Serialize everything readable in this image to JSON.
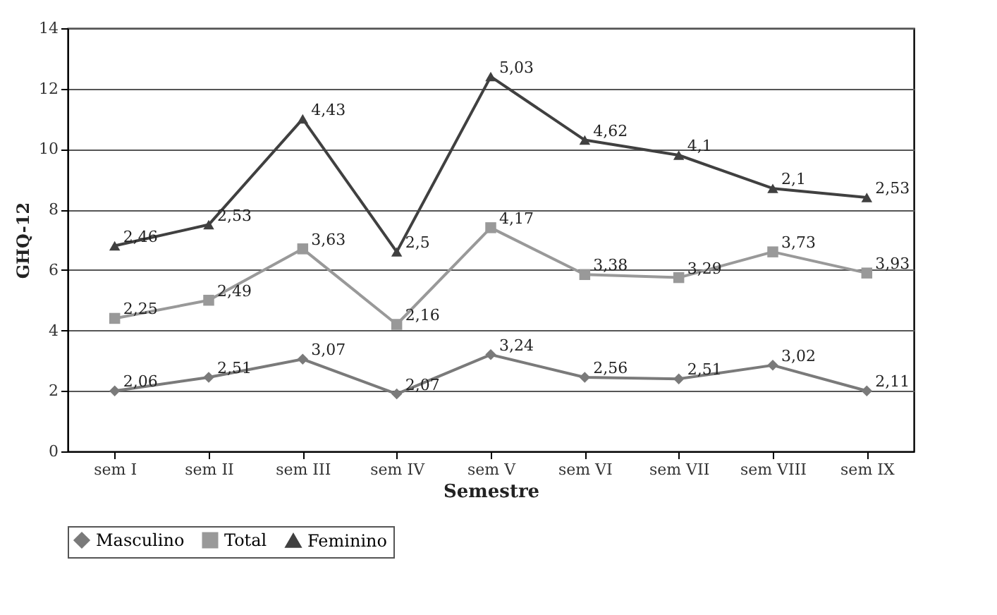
{
  "chart_data": {
    "type": "line",
    "xlabel": "Semestre",
    "ylabel": "GHQ-12",
    "categories": [
      "sem I",
      "sem II",
      "sem III",
      "sem IV",
      "sem V",
      "sem VI",
      "sem VII",
      "sem VIII",
      "sem IX"
    ],
    "ylim": [
      0,
      14
    ],
    "yticks": [
      0,
      2,
      4,
      6,
      8,
      10,
      12,
      14
    ],
    "grid": "y",
    "legend": "bottom",
    "series": [
      {
        "name": "Masculino",
        "color": "#7a7a7a",
        "marker": "diamond",
        "values": [
          2.0,
          2.45,
          3.05,
          1.9,
          3.2,
          2.45,
          2.4,
          2.85,
          2.0
        ]
      },
      {
        "name": "Total",
        "color": "#999999",
        "marker": "square",
        "values": [
          4.4,
          5.0,
          6.7,
          4.2,
          7.4,
          5.85,
          5.75,
          6.6,
          5.9
        ]
      },
      {
        "name": "Feminino",
        "color": "#404040",
        "marker": "triangle",
        "values": [
          6.8,
          7.5,
          11.0,
          6.6,
          12.4,
          10.3,
          9.8,
          8.7,
          8.4
        ]
      }
    ],
    "annotations": [
      {
        "text": "2,06",
        "x": "sem I",
        "y": 2.0
      },
      {
        "text": "2,51",
        "x": "sem II",
        "y": 2.45
      },
      {
        "text": "3,07",
        "x": "sem III",
        "y": 3.05
      },
      {
        "text": "2,07",
        "x": "sem IV",
        "y": 1.9
      },
      {
        "text": "3,24",
        "x": "sem V",
        "y": 3.2
      },
      {
        "text": "2,56",
        "x": "sem VI",
        "y": 2.45
      },
      {
        "text": "2,51",
        "x": "sem VII",
        "y": 2.4
      },
      {
        "text": "3,02",
        "x": "sem VIII",
        "y": 2.85
      },
      {
        "text": "2,11",
        "x": "sem IX",
        "y": 2.0
      },
      {
        "text": "2,25",
        "x": "sem I",
        "y": 4.4
      },
      {
        "text": "2,49",
        "x": "sem II",
        "y": 5.0
      },
      {
        "text": "3,63",
        "x": "sem III",
        "y": 6.7
      },
      {
        "text": "2,16",
        "x": "sem IV",
        "y": 4.2
      },
      {
        "text": "4,17",
        "x": "sem V",
        "y": 7.4
      },
      {
        "text": "3,38",
        "x": "sem VI",
        "y": 5.85
      },
      {
        "text": "3,29",
        "x": "sem VII",
        "y": 5.75
      },
      {
        "text": "3,73",
        "x": "sem VIII",
        "y": 6.6
      },
      {
        "text": "3,93",
        "x": "sem IX",
        "y": 5.9
      },
      {
        "text": "2,46",
        "x": "sem I",
        "y": 6.8
      },
      {
        "text": "2,53",
        "x": "sem II",
        "y": 7.5
      },
      {
        "text": "4,43",
        "x": "sem III",
        "y": 11.0
      },
      {
        "text": "2,5",
        "x": "sem IV",
        "y": 6.6
      },
      {
        "text": "5,03",
        "x": "sem V",
        "y": 12.4
      },
      {
        "text": "4,62",
        "x": "sem VI",
        "y": 10.3
      },
      {
        "text": "4,1",
        "x": "sem VII",
        "y": 9.8
      },
      {
        "text": "2,1",
        "x": "sem VIII",
        "y": 8.7
      },
      {
        "text": "2,53",
        "x": "sem IX",
        "y": 8.4
      }
    ]
  }
}
